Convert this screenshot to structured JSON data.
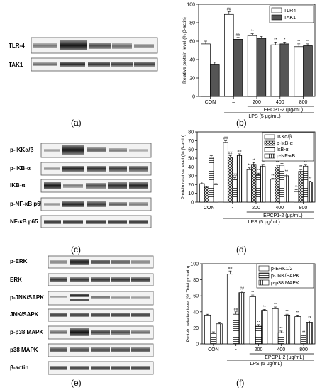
{
  "panel_labels": [
    "(a)",
    "(b)",
    "(c)",
    "(d)",
    "(e)",
    "(f)"
  ],
  "blots": {
    "a": {
      "rows": [
        "TLR-4",
        "TAK1"
      ]
    },
    "c": {
      "rows": [
        "p-IKKα/β",
        "p-IKB-α",
        "IKB-α",
        "p-NF-κB p65",
        "NF-κB p65"
      ]
    },
    "e": {
      "rows": [
        "p-ERK",
        "ERK",
        "p-JNK/SAPK",
        "JNK/SAPK",
        "p-p38 MAPK",
        "p38 MAPK",
        "β-actin"
      ]
    }
  },
  "colors": {
    "ink": "#000000",
    "dark_fill": "#555555",
    "paper": "#ffffff",
    "light_gray": "#dddddd"
  },
  "chart_data": [
    {
      "type": "bar",
      "panel": "b",
      "categories": [
        "CON",
        "–",
        "200",
        "400",
        "800"
      ],
      "ylabel": "Relative protein level (% β-actin)",
      "ylim": [
        0,
        100
      ],
      "yticks": [
        0,
        20,
        40,
        60,
        80,
        100
      ],
      "group_label": "EPCP1-2 (μg/mL)",
      "lps_label": "LPS (5 μg/mL)",
      "legend_position": "top-right",
      "series": [
        {
          "name": "TLR4",
          "values": [
            57,
            89,
            66,
            56,
            54
          ],
          "errors": [
            3,
            3,
            2,
            3,
            3
          ],
          "pattern": "white",
          "marks": [
            "",
            "##",
            "**",
            "**",
            "**"
          ]
        },
        {
          "name": "TAK1",
          "values": [
            35,
            62,
            63,
            57,
            55
          ],
          "errors": [
            2,
            2,
            2,
            2,
            2
          ],
          "pattern": "dark",
          "marks": [
            "",
            "##",
            "",
            "*",
            "**"
          ]
        }
      ]
    },
    {
      "type": "bar",
      "panel": "d",
      "categories": [
        "CON",
        "-",
        "200",
        "400",
        "800"
      ],
      "ylabel": "Protein relative level (% β-actin)",
      "ylim": [
        0,
        80
      ],
      "yticks": [
        0,
        10,
        20,
        30,
        40,
        50,
        60,
        70,
        80
      ],
      "group_label": "EPCP1-2 (μg/mL)",
      "lps_label": "LPS (5 μg/mL)",
      "legend_position": "top-right",
      "series": [
        {
          "name": "IKKα/β",
          "values": [
            21,
            68,
            37,
            26,
            12
          ],
          "errors": [
            2,
            2,
            2,
            1,
            2
          ],
          "pattern": "white",
          "marks": [
            "",
            "##",
            "**",
            "**",
            "**"
          ]
        },
        {
          "name": "p-IκB-α",
          "values": [
            17,
            51,
            43,
            40,
            35
          ],
          "errors": [
            1,
            2,
            2,
            2,
            2
          ],
          "pattern": "cross",
          "marks": [
            "",
            "##",
            "**",
            "**",
            "**"
          ]
        },
        {
          "name": "IκB-α",
          "values": [
            51,
            26,
            31,
            42,
            41
          ],
          "errors": [
            2,
            2,
            2,
            2,
            2
          ],
          "pattern": "hline",
          "marks": [
            "",
            "##",
            "**",
            "**",
            "**"
          ]
        },
        {
          "name": "p-NF-κB",
          "values": [
            20,
            53,
            41,
            30,
            23
          ],
          "errors": [
            1,
            2,
            2,
            2,
            1
          ],
          "pattern": "vline",
          "marks": [
            "",
            "##",
            "**",
            "**",
            "**"
          ]
        }
      ]
    },
    {
      "type": "bar",
      "panel": "f",
      "categories": [
        "CON",
        "-",
        "200",
        "400",
        "800"
      ],
      "ylabel": "Protein relative level (% Total protein)",
      "ylim": [
        0,
        100
      ],
      "yticks": [
        0,
        20,
        40,
        60,
        80,
        100
      ],
      "group_label": "EPCP1-2 (μg/mL)",
      "lps_label": "LPS (5 μg/mL)",
      "legend_position": "top-right",
      "series": [
        {
          "name": "p-ERK1/2",
          "values": [
            36,
            87,
            59,
            44,
            34
          ],
          "errors": [
            1,
            4,
            2,
            2,
            2
          ],
          "pattern": "white",
          "marks": [
            "",
            "##",
            "**",
            "**",
            "**"
          ]
        },
        {
          "name": "p-JNK/SAPK",
          "values": [
            13,
            37,
            22,
            14,
            10
          ],
          "errors": [
            2,
            3,
            2,
            2,
            1
          ],
          "pattern": "hline",
          "marks": [
            "",
            "##",
            "**",
            "**",
            "**"
          ]
        },
        {
          "name": "p-p38 MAPK",
          "values": [
            25,
            64,
            42,
            36,
            27
          ],
          "errors": [
            2,
            2,
            1,
            1,
            2
          ],
          "pattern": "vline",
          "marks": [
            "",
            "##",
            "**",
            "**",
            "**"
          ]
        }
      ]
    }
  ]
}
